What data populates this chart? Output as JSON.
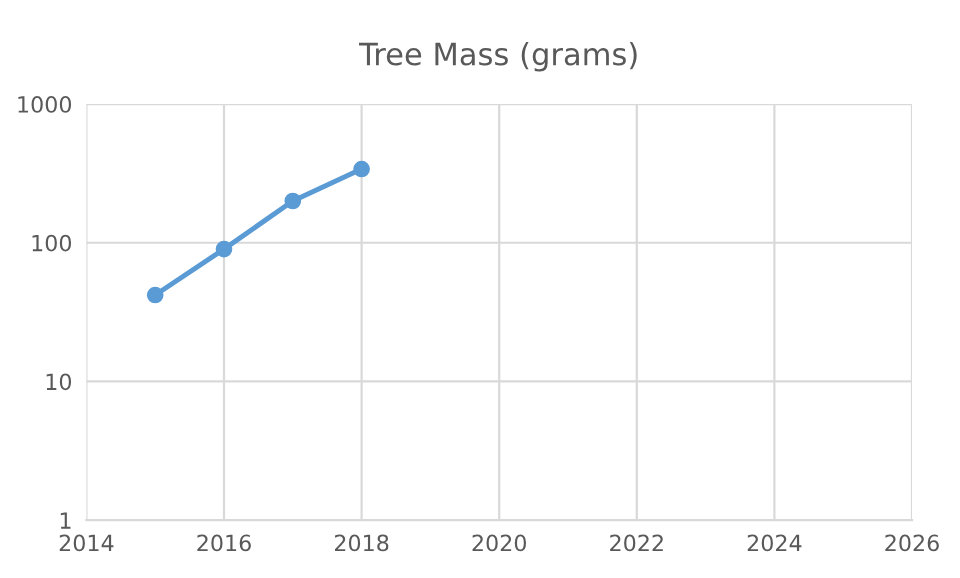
{
  "chart_data": {
    "type": "line",
    "title": "Tree Mass (grams)",
    "x": [
      2015,
      2016,
      2017,
      2018
    ],
    "series": [
      {
        "color": "#5b9bd5",
        "values": [
          42,
          90,
          200,
          340
        ]
      }
    ],
    "xlim": [
      2014,
      2026
    ],
    "xticks": [
      2014,
      2016,
      2018,
      2020,
      2022,
      2024,
      2026
    ],
    "ylim": [
      1,
      1000
    ],
    "yticks": [
      1,
      10,
      100,
      1000
    ],
    "log": "y",
    "grid": true,
    "marker": "circle",
    "line_style": "solid"
  }
}
